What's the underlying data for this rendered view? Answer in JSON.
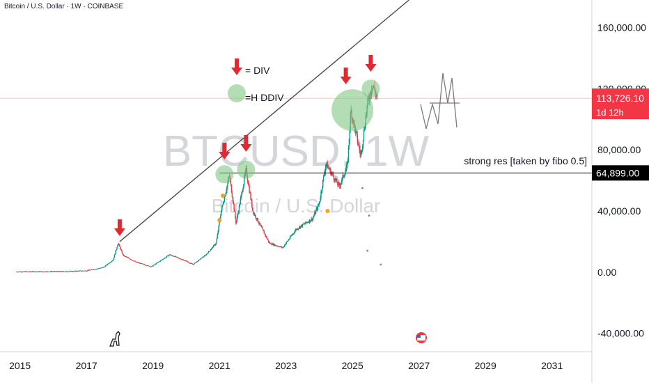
{
  "header": {
    "title": "Bitcoin / U.S. Dollar · 1W · COINBASE"
  },
  "watermark": {
    "symbol": "BTCUSD, 1W",
    "name": "Bitcoin / U.S. Dollar"
  },
  "legend": {
    "div_label": "= DIV",
    "hdiv_label": "=H DDIV"
  },
  "annotations": {
    "resistance_label": "strong res [taken by fibo 0.5]"
  },
  "price_tags": {
    "current": {
      "value": "113,726.10",
      "countdown": "1d 12h",
      "color": "#f23645"
    },
    "resistance": {
      "value": "64,899.00",
      "color": "#000000"
    }
  },
  "colors": {
    "candle_up": "#089981",
    "candle_down": "#f23645",
    "arrow": "#e02a32",
    "circle": "#81c784",
    "dot": "#f7a021"
  },
  "chart_data": {
    "type": "candlestick",
    "x_ticks": [
      "2015",
      "2017",
      "2019",
      "2021",
      "2023",
      "2025",
      "2027",
      "2029",
      "2031"
    ],
    "y_ticks": [
      "-40,000.00",
      "0.00",
      "40,000.00",
      "80,000.00",
      "120,000.00",
      "160,000.00"
    ],
    "xlim": [
      2014.4,
      2032.2
    ],
    "ylim": [
      -52000,
      178000
    ],
    "price_path": [
      [
        2014.9,
        300
      ],
      [
        2016.5,
        500
      ],
      [
        2017.0,
        1000
      ],
      [
        2017.5,
        3000
      ],
      [
        2017.8,
        8000
      ],
      [
        2017.95,
        19000
      ],
      [
        2018.1,
        11000
      ],
      [
        2018.5,
        6500
      ],
      [
        2018.95,
        3500
      ],
      [
        2019.5,
        11500
      ],
      [
        2020.0,
        7200
      ],
      [
        2020.2,
        5000
      ],
      [
        2020.6,
        11500
      ],
      [
        2020.9,
        19000
      ],
      [
        2021.05,
        40000
      ],
      [
        2021.3,
        63000
      ],
      [
        2021.5,
        32000
      ],
      [
        2021.8,
        67000
      ],
      [
        2022.0,
        40000
      ],
      [
        2022.5,
        19000
      ],
      [
        2022.9,
        16000
      ],
      [
        2023.3,
        28000
      ],
      [
        2023.8,
        35000
      ],
      [
        2024.0,
        45000
      ],
      [
        2024.2,
        71000
      ],
      [
        2024.6,
        56000
      ],
      [
        2024.85,
        70000
      ],
      [
        2024.95,
        106000
      ],
      [
        2025.25,
        76000
      ],
      [
        2025.45,
        110000
      ],
      [
        2025.6,
        123000
      ],
      [
        2025.75,
        113726
      ]
    ],
    "divergence_arrows": [
      2018.0,
      2021.15,
      2021.8,
      2024.8,
      2025.55
    ],
    "hidden_divergence_circles": [
      {
        "year": 2021.15,
        "price": 64000
      },
      {
        "year": 2021.8,
        "price": 67000
      },
      {
        "year": 2025.0,
        "price": 106000
      },
      {
        "year": 2025.55,
        "price": 120000
      }
    ],
    "trendline": [
      [
        2018.0,
        20000
      ],
      [
        2026.7,
        178000
      ]
    ],
    "resistance_level": 64899,
    "current_price": 113726.1
  }
}
